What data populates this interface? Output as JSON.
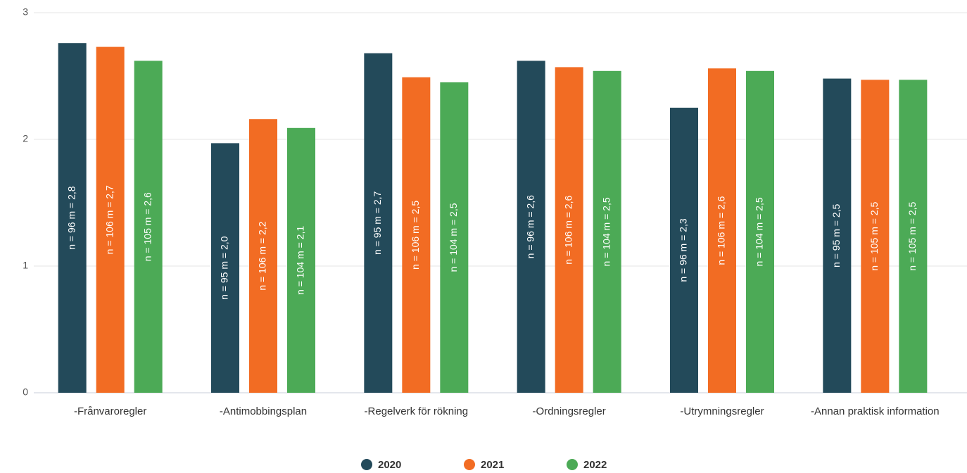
{
  "chart_data": {
    "type": "bar",
    "categories": [
      "-Frånvaroregler",
      "-Antimobbingsplan",
      "-Regelverk för rökning",
      "-Ordningsregler",
      "-Utrymningsregler",
      "-Annan praktisk information"
    ],
    "series": [
      {
        "name": "2020",
        "color": "#234a5a",
        "values": [
          2.76,
          1.97,
          2.68,
          2.62,
          2.25,
          2.48
        ],
        "value_labels": [
          "n = 96 m = 2,8",
          "n = 95 m = 2,0",
          "n = 95 m = 2,7",
          "n = 96 m = 2,6",
          "n = 96 m = 2,3",
          "n = 95 m = 2,5"
        ]
      },
      {
        "name": "2021",
        "color": "#f26c23",
        "values": [
          2.73,
          2.16,
          2.49,
          2.57,
          2.56,
          2.47
        ],
        "value_labels": [
          "n = 106 m = 2,7",
          "n = 106 m = 2,2",
          "n = 106 m = 2,5",
          "n = 106 m = 2,6",
          "n = 106 m = 2,6",
          "n = 105 m = 2,5"
        ]
      },
      {
        "name": "2022",
        "color": "#4caa56",
        "values": [
          2.62,
          2.09,
          2.45,
          2.54,
          2.54,
          2.47
        ],
        "value_labels": [
          "n = 105 m = 2,6",
          "n = 104 m = 2,1",
          "n = 104 m = 2,5",
          "n = 104 m = 2,5",
          "n = 104 m = 2,5",
          "n = 105 m = 2,5"
        ]
      }
    ],
    "ylim": [
      0,
      3
    ],
    "yticks": [
      0,
      1,
      2,
      3
    ],
    "grid": true,
    "legend": "bottom"
  }
}
